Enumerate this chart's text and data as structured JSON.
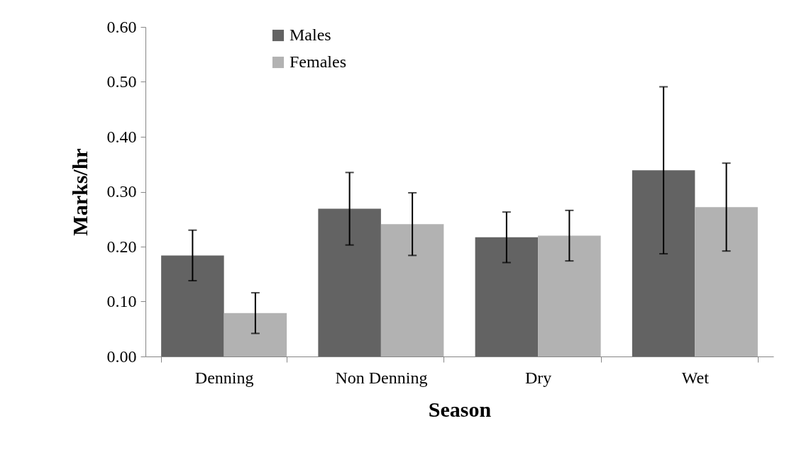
{
  "chart_data": {
    "type": "bar",
    "xlabel": "Season",
    "ylabel": "Marks/hr",
    "categories": [
      "Denning",
      "Non Denning",
      "Dry",
      "Wet"
    ],
    "series": [
      {
        "name": "Males",
        "color": "#636363",
        "values": [
          0.184,
          0.269,
          0.217,
          0.339
        ],
        "errors": [
          0.046,
          0.066,
          0.046,
          0.152
        ]
      },
      {
        "name": "Females",
        "color": "#b2b2b2",
        "values": [
          0.079,
          0.241,
          0.22,
          0.272
        ],
        "errors": [
          0.037,
          0.057,
          0.046,
          0.08
        ]
      }
    ],
    "ylim": [
      0,
      0.6
    ],
    "yticks": [
      {
        "value": 0,
        "label": "0.00"
      },
      {
        "value": 0.1,
        "label": "0.10"
      },
      {
        "value": 0.2,
        "label": "0.20"
      },
      {
        "value": 0.3,
        "label": "0.30"
      },
      {
        "value": 0.4,
        "label": "0.40"
      },
      {
        "value": 0.5,
        "label": "0.50"
      },
      {
        "value": 0.6,
        "label": "0.60"
      }
    ],
    "legend": "top"
  }
}
